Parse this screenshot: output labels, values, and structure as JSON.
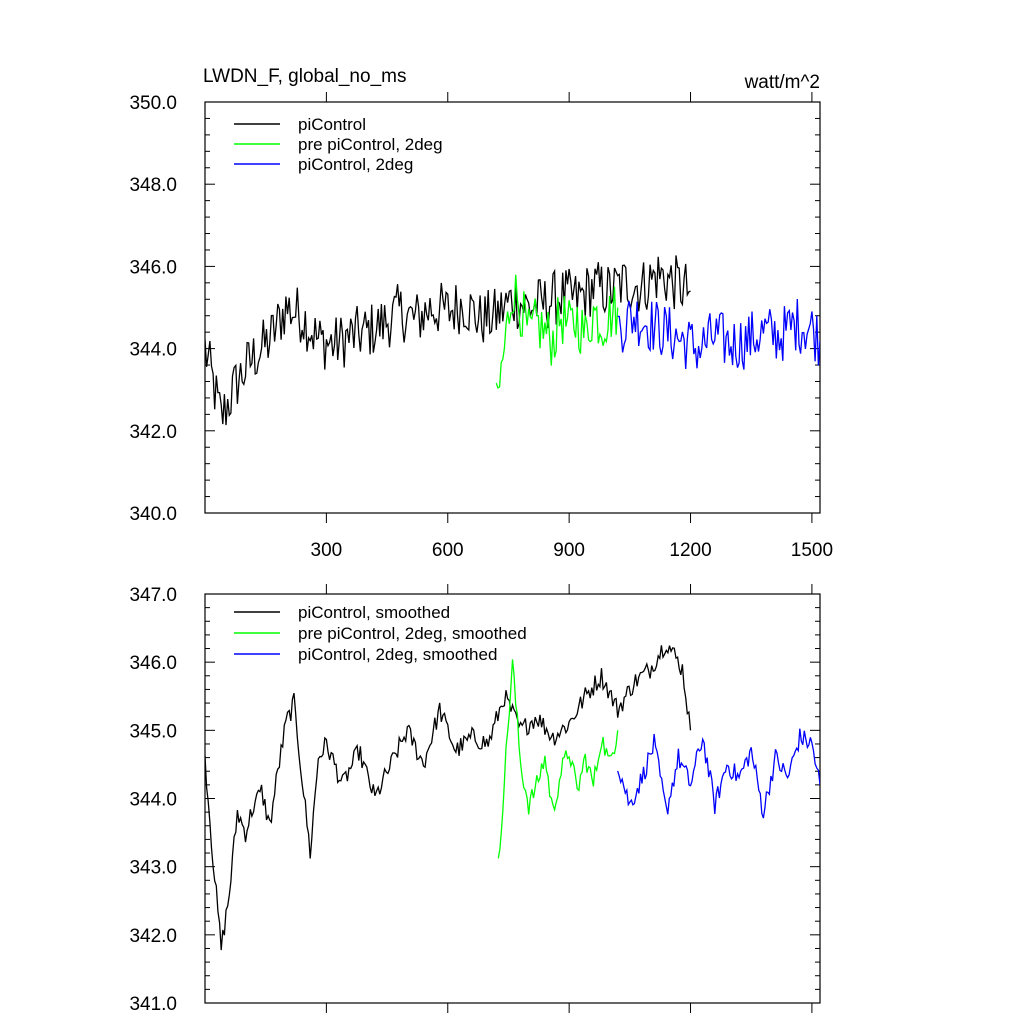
{
  "chart_data": [
    {
      "type": "line",
      "title": "LWDN_F, global_no_ms",
      "units": "watt/m^2",
      "xlabel": "",
      "ylabel": "",
      "xlim": [
        0,
        1520
      ],
      "ylim": [
        340.0,
        350.0
      ],
      "xticks": [
        300,
        600,
        900,
        1200,
        1500
      ],
      "yticks": [
        340.0,
        342.0,
        344.0,
        346.0,
        348.0,
        350.0
      ],
      "ytick_labels": [
        "340.0",
        "342.0",
        "344.0",
        "346.0",
        "348.0",
        "350.0"
      ],
      "xtick_labels": [
        "300",
        "600",
        "900",
        "1200",
        "1500"
      ],
      "legend_position": "top-left",
      "series": [
        {
          "name": "piControl",
          "color": "#000000",
          "x": [
            0,
            40,
            80,
            120,
            160,
            200,
            240,
            280,
            320,
            360,
            400,
            440,
            480,
            520,
            560,
            600,
            640,
            680,
            720,
            760,
            800,
            840,
            880,
            920,
            960,
            1000,
            1040,
            1080,
            1120,
            1160,
            1200
          ],
          "y": [
            344.0,
            342.3,
            343.2,
            343.8,
            344.2,
            345.0,
            344.8,
            344.2,
            344.1,
            344.3,
            344.4,
            344.6,
            344.9,
            344.7,
            345.0,
            344.9,
            345.1,
            344.7,
            344.8,
            345.2,
            345.0,
            345.1,
            345.3,
            345.2,
            345.5,
            345.4,
            345.6,
            345.5,
            345.8,
            345.6,
            345.4
          ]
        },
        {
          "name": "pre piControl, 2deg",
          "color": "#00ff00",
          "x": [
            720,
            740,
            760,
            780,
            800,
            820,
            840,
            860,
            880,
            900,
            920,
            940,
            960,
            980,
            1000,
            1020
          ],
          "y": [
            342.5,
            344.0,
            345.5,
            345.0,
            344.3,
            344.6,
            344.4,
            344.2,
            344.8,
            344.5,
            344.7,
            344.3,
            344.9,
            344.6,
            344.8,
            345.0
          ]
        },
        {
          "name": "piControl, 2deg",
          "color": "#0000ff",
          "x": [
            1020,
            1060,
            1100,
            1140,
            1180,
            1220,
            1260,
            1300,
            1340,
            1380,
            1420,
            1460,
            1500,
            1520
          ],
          "y": [
            344.5,
            344.8,
            344.6,
            344.4,
            344.2,
            344.0,
            344.3,
            344.1,
            344.2,
            344.4,
            344.3,
            344.6,
            344.5,
            344.2
          ]
        }
      ]
    },
    {
      "type": "line",
      "title": "",
      "xlabel": "",
      "ylabel": "",
      "xlim": [
        0,
        1520
      ],
      "ylim": [
        341.0,
        347.0
      ],
      "xticks": [
        300,
        600,
        900,
        1200,
        1500
      ],
      "yticks": [
        341.0,
        342.0,
        343.0,
        344.0,
        345.0,
        346.0,
        347.0
      ],
      "ytick_labels": [
        "341.0",
        "342.0",
        "343.0",
        "344.0",
        "345.0",
        "346.0",
        "347.0"
      ],
      "legend_position": "top-left",
      "series": [
        {
          "name": "piControl, smoothed",
          "color": "#000000",
          "x": [
            0,
            20,
            40,
            60,
            80,
            100,
            120,
            140,
            160,
            180,
            200,
            220,
            240,
            260,
            280,
            300,
            340,
            380,
            420,
            460,
            500,
            540,
            580,
            620,
            660,
            700,
            740,
            780,
            820,
            860,
            900,
            940,
            980,
            1020,
            1060,
            1100,
            1140,
            1180,
            1200
          ],
          "y": [
            344.6,
            343.1,
            341.8,
            342.6,
            343.8,
            343.5,
            343.9,
            344.1,
            343.6,
            344.4,
            345.1,
            345.4,
            344.3,
            343.2,
            344.6,
            344.8,
            344.2,
            344.7,
            344.0,
            344.5,
            345.0,
            344.5,
            345.3,
            344.7,
            344.9,
            344.8,
            345.5,
            345.0,
            345.2,
            344.9,
            345.1,
            345.5,
            345.8,
            345.3,
            345.7,
            345.9,
            346.3,
            345.9,
            345.0
          ]
        },
        {
          "name": "pre piControl, 2deg, smoothed",
          "color": "#00ff00",
          "x": [
            725,
            740,
            760,
            780,
            800,
            820,
            840,
            860,
            880,
            900,
            920,
            940,
            960,
            980,
            1000,
            1020
          ],
          "y": [
            343.0,
            344.3,
            346.0,
            344.5,
            343.9,
            344.2,
            344.6,
            343.8,
            344.4,
            344.7,
            344.1,
            344.6,
            344.2,
            344.9,
            344.5,
            345.0
          ]
        },
        {
          "name": "piControl, 2deg, smoothed",
          "color": "#0000ff",
          "x": [
            1020,
            1050,
            1080,
            1110,
            1140,
            1170,
            1200,
            1230,
            1260,
            1290,
            1320,
            1350,
            1380,
            1410,
            1440,
            1470,
            1500,
            1520
          ],
          "y": [
            344.5,
            343.9,
            344.3,
            344.8,
            343.8,
            344.6,
            344.2,
            344.9,
            343.9,
            344.5,
            344.3,
            344.7,
            343.8,
            344.6,
            344.3,
            344.9,
            344.8,
            344.2
          ]
        }
      ]
    }
  ]
}
